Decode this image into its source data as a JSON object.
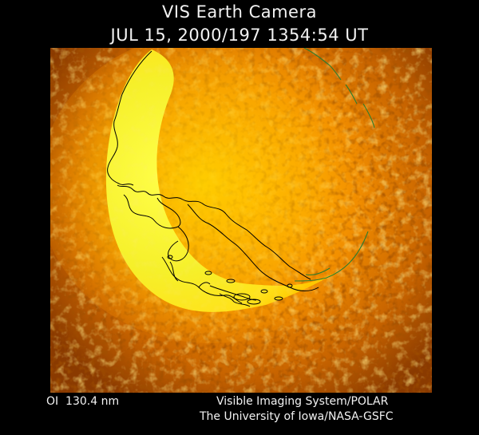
{
  "header": {
    "title": "VIS Earth Camera",
    "timestamp": "JUL 15, 2000/197 1354:54 UT"
  },
  "footer": {
    "filter": "OI  130.4 nm",
    "instrument": "Visible Imaging System/POLAR",
    "institution": "The University of Iowa/NASA-GSFC"
  },
  "colors": {
    "background": "#000000",
    "limb": "#ffff20",
    "glow": "#ffe000",
    "field": "#b85a00",
    "coastline": "#000000",
    "continent_outline": "#2e7d2e"
  }
}
